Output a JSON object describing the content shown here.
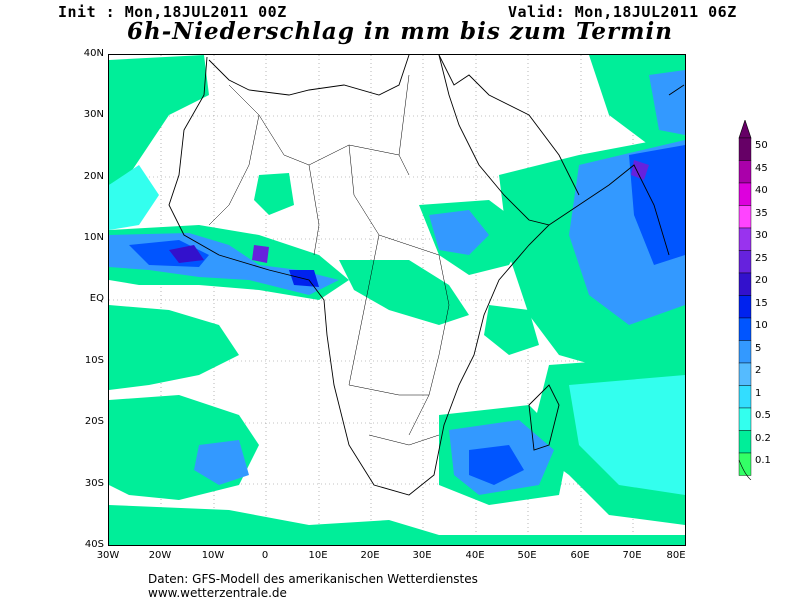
{
  "header": {
    "init": "Init : Mon,18JUL2011 00Z",
    "valid": "Valid: Mon,18JUL2011 06Z",
    "title": "6h-Niederschlag in mm bis zum Termin"
  },
  "axes": {
    "lat_labels": [
      "40N",
      "30N",
      "20N",
      "10N",
      "EQ",
      "10S",
      "20S",
      "30S",
      "40S"
    ],
    "lon_labels": [
      "30W",
      "20W",
      "10W",
      "0",
      "10E",
      "20E",
      "30E",
      "40E",
      "50E",
      "60E",
      "70E",
      "80E"
    ]
  },
  "legend": {
    "labels": [
      "50",
      "45",
      "40",
      "35",
      "30",
      "25",
      "20",
      "15",
      "10",
      "5",
      "2",
      "1",
      "0.5",
      "0.2",
      "0.1"
    ],
    "colors": [
      "#660066",
      "#aa00aa",
      "#dd00dd",
      "#ff44ff",
      "#9933ee",
      "#6622dd",
      "#3311cc",
      "#0022ee",
      "#0055ff",
      "#3399ff",
      "#55bbff",
      "#33ddff",
      "#33ffee",
      "#00ee99",
      "#33ff66"
    ]
  },
  "footer": {
    "line1": "Daten: GFS-Modell des amerikanischen Wetterdienstes",
    "line2": "www.wetterzentrale.de"
  }
}
